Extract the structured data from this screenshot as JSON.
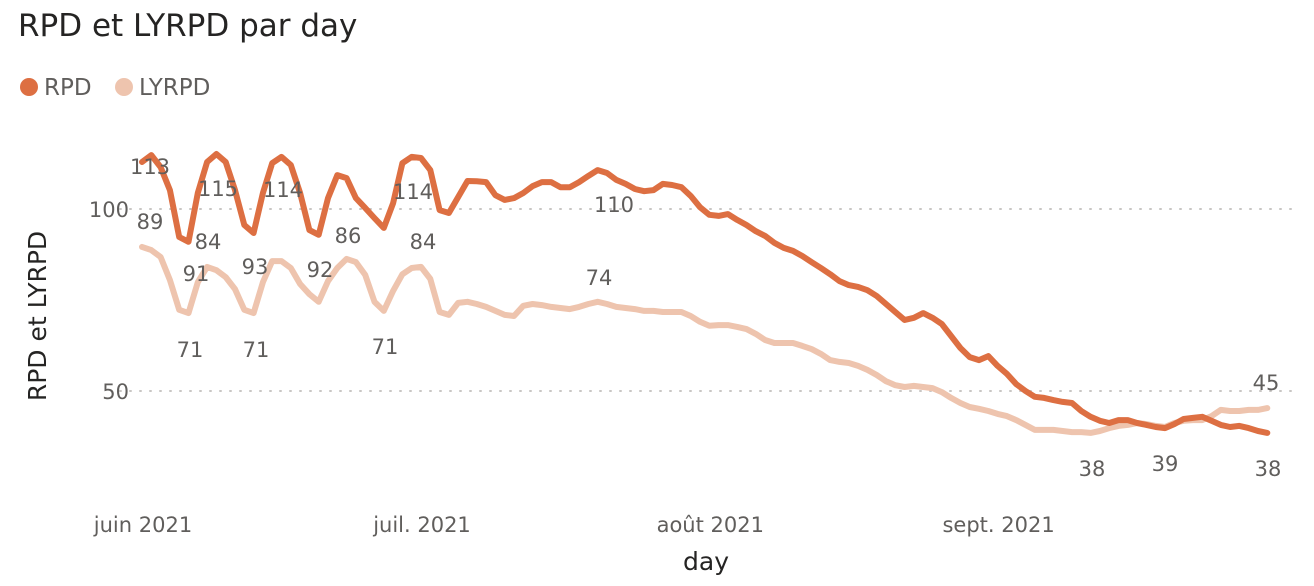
{
  "chart_data": {
    "type": "line",
    "title": "RPD et LYRPD par day",
    "xlabel": "day",
    "ylabel": "RPD et LYRPD",
    "x_unit": "days since 2021-06-01",
    "x_range": [
      "2021-06-01",
      "2021-09-30"
    ],
    "x_ticks": [
      {
        "day": 0,
        "label": "juin 2021"
      },
      {
        "day": 30,
        "label": "juil. 2021"
      },
      {
        "day": 61,
        "label": "août 2021"
      },
      {
        "day": 92,
        "label": "sept. 2021"
      }
    ],
    "y_ticks": [
      {
        "value": 100,
        "label": "100"
      },
      {
        "value": 50,
        "label": "50"
      }
    ],
    "ylim": [
      0,
      120
    ],
    "grid": "horizontal dotted",
    "legend_position": "top-left",
    "series": [
      {
        "name": "RPD",
        "color": "#DD6F42",
        "values": [
          112.9,
          114.8,
          111.5,
          105.2,
          92.3,
          91.0,
          104.4,
          112.9,
          115.1,
          112.9,
          105.2,
          95.6,
          93.4,
          104.4,
          112.6,
          114.3,
          112.1,
          104.4,
          94.2,
          92.9,
          103.0,
          109.3,
          108.5,
          103.0,
          100.3,
          97.5,
          94.8,
          101.6,
          112.6,
          114.3,
          114.0,
          110.7,
          99.7,
          98.9,
          103.3,
          107.7,
          107.6,
          107.4,
          103.8,
          102.5,
          103.0,
          104.4,
          106.3,
          107.4,
          107.4,
          106.0,
          106.0,
          107.4,
          109.1,
          110.7,
          109.9,
          108.0,
          106.9,
          105.5,
          104.9,
          105.2,
          106.9,
          106.6,
          106.0,
          103.6,
          100.5,
          98.4,
          98.1,
          98.6,
          97.0,
          95.6,
          93.9,
          92.6,
          90.7,
          89.3,
          88.5,
          87.1,
          85.4,
          83.8,
          82.1,
          80.2,
          79.1,
          78.6,
          77.7,
          76.1,
          73.9,
          71.7,
          69.5,
          70.1,
          71.4,
          70.1,
          68.4,
          65.1,
          61.8,
          59.3,
          58.5,
          59.6,
          56.9,
          54.7,
          51.9,
          50.0,
          48.4,
          48.1,
          47.5,
          47.0,
          46.7,
          44.5,
          42.9,
          41.8,
          41.2,
          42.0,
          42.0,
          41.2,
          40.7,
          40.1,
          39.8,
          40.9,
          42.3,
          42.6,
          42.9,
          41.8,
          40.7,
          40.1,
          40.4,
          39.8,
          39.0,
          38.5
        ]
      },
      {
        "name": "LYRPD",
        "color": "#EEC4AE",
        "values": [
          89.6,
          88.7,
          86.8,
          80.5,
          72.3,
          71.4,
          79.9,
          84.1,
          83.2,
          81.3,
          78.0,
          72.3,
          71.4,
          79.9,
          85.7,
          85.7,
          83.8,
          79.4,
          76.6,
          74.5,
          80.2,
          83.8,
          86.3,
          85.4,
          81.9,
          74.5,
          72.0,
          77.5,
          82.1,
          83.8,
          84.1,
          80.8,
          71.7,
          70.9,
          74.2,
          74.5,
          73.9,
          73.1,
          72.0,
          70.9,
          70.6,
          73.4,
          73.9,
          73.6,
          73.1,
          72.8,
          72.5,
          73.1,
          73.9,
          74.5,
          73.9,
          73.1,
          72.8,
          72.5,
          72.0,
          72.0,
          71.7,
          71.7,
          71.7,
          70.6,
          69.0,
          67.9,
          68.1,
          68.1,
          67.6,
          67.0,
          65.7,
          64.0,
          63.2,
          63.2,
          63.2,
          62.4,
          61.5,
          60.2,
          58.5,
          58.0,
          57.7,
          56.9,
          55.8,
          54.4,
          52.7,
          51.6,
          51.1,
          51.4,
          51.1,
          50.8,
          49.7,
          48.1,
          46.7,
          45.6,
          45.1,
          44.5,
          43.7,
          43.1,
          42.0,
          40.7,
          39.3,
          39.3,
          39.3,
          39.0,
          38.7,
          38.7,
          38.5,
          39.0,
          39.8,
          40.4,
          40.7,
          41.2,
          40.9,
          40.4,
          40.1,
          41.2,
          41.8,
          42.0,
          42.0,
          43.1,
          44.8,
          44.5,
          44.5,
          44.8,
          44.8,
          45.3
        ]
      }
    ],
    "data_labels": [
      {
        "series": "RPD",
        "text": "113"
      },
      {
        "series": "LYRPD",
        "text": "89"
      },
      {
        "series": "RPD",
        "text": "115"
      },
      {
        "series": "LYRPD",
        "text": "84"
      },
      {
        "series": "RPD",
        "text": "91"
      },
      {
        "series": "LYRPD",
        "text": "71"
      },
      {
        "series": "RPD",
        "text": "114"
      },
      {
        "series": "RPD",
        "text": "93"
      },
      {
        "series": "LYRPD",
        "text": "71"
      },
      {
        "series": "RPD",
        "text": "92"
      },
      {
        "series": "LYRPD",
        "text": "86"
      },
      {
        "series": "RPD",
        "text": "114"
      },
      {
        "series": "LYRPD",
        "text": "84"
      },
      {
        "series": "LYRPD",
        "text": "71"
      },
      {
        "series": "RPD",
        "text": "110"
      },
      {
        "series": "LYRPD",
        "text": "74"
      },
      {
        "series": "LYRPD",
        "text": "38"
      },
      {
        "series": "RPD",
        "text": "39"
      },
      {
        "series": "RPD",
        "text": "38"
      },
      {
        "series": "LYRPD",
        "text": "45"
      }
    ]
  }
}
